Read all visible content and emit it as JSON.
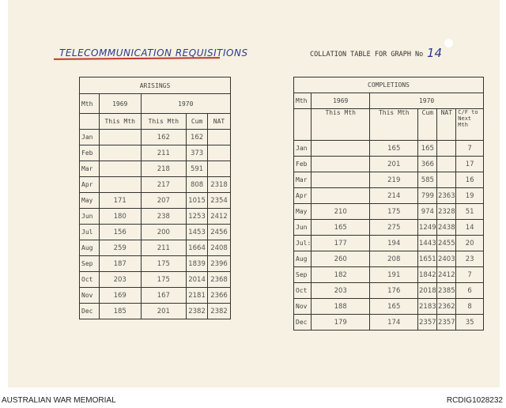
{
  "document": {
    "heading": "TELECOMMUNICATION REQUISITIONS",
    "collation_label": "COLLATION TABLE FOR GRAPH No",
    "graph_number": "14"
  },
  "arisings": {
    "title": "ARISINGS",
    "mth": "Mth",
    "year1": "1969",
    "year2": "1970",
    "this_mth": "This Mth",
    "cum": "Cum",
    "nat": "NAT",
    "rows": [
      [
        "Jan",
        "",
        "162",
        "162",
        ""
      ],
      [
        "Feb",
        "",
        "211",
        "373",
        ""
      ],
      [
        "Mar",
        "",
        "218",
        "591",
        ""
      ],
      [
        "Apr",
        "",
        "217",
        "808",
        "2318"
      ],
      [
        "May",
        "171",
        "207",
        "1015",
        "2354"
      ],
      [
        "Jun",
        "180",
        "238",
        "1253",
        "2412"
      ],
      [
        "Jul",
        "156",
        "200",
        "1453",
        "2456"
      ],
      [
        "Aug",
        "259",
        "211",
        "1664",
        "2408"
      ],
      [
        "Sep",
        "187",
        "175",
        "1839",
        "2396"
      ],
      [
        "Oct",
        "203",
        "175",
        "2014",
        "2368"
      ],
      [
        "Nov",
        "169",
        "167",
        "2181",
        "2366"
      ],
      [
        "Dec",
        "185",
        "201",
        "2382",
        "2382"
      ]
    ]
  },
  "completions": {
    "title": "COMPLETIONS",
    "mth": "Mth",
    "year1": "1969",
    "year2": "1970",
    "this_mth": "This Mth",
    "cum": "Cum",
    "nat": "NAT",
    "cf": "C/F to Next Mth",
    "rows": [
      [
        "Jan",
        "",
        "165",
        "165",
        "",
        "7"
      ],
      [
        "Feb",
        "",
        "201",
        "366",
        "",
        "17"
      ],
      [
        "Mar",
        "",
        "219",
        "585",
        "",
        "16"
      ],
      [
        "Apr",
        "",
        "214",
        "799",
        "2363",
        "19"
      ],
      [
        "May",
        "210",
        "175",
        "974",
        "2328",
        "51"
      ],
      [
        "Jun",
        "165",
        "275",
        "1249",
        "2438",
        "14"
      ],
      [
        "Jul:",
        "177",
        "194",
        "1443",
        "2455",
        "20"
      ],
      [
        "Aug",
        "260",
        "208",
        "1651",
        "2403",
        "23"
      ],
      [
        "Sep",
        "182",
        "191",
        "1842",
        "2412",
        "7"
      ],
      [
        "Oct",
        "203",
        "176",
        "2018",
        "2385",
        "6"
      ],
      [
        "Nov",
        "188",
        "165",
        "2183",
        "2362",
        "8"
      ],
      [
        "Dec",
        "179",
        "174",
        "2357",
        "2357",
        "35"
      ]
    ]
  },
  "footer": {
    "left": "AUSTRALIAN WAR MEMORIAL",
    "right": "RCDIG1028232"
  }
}
